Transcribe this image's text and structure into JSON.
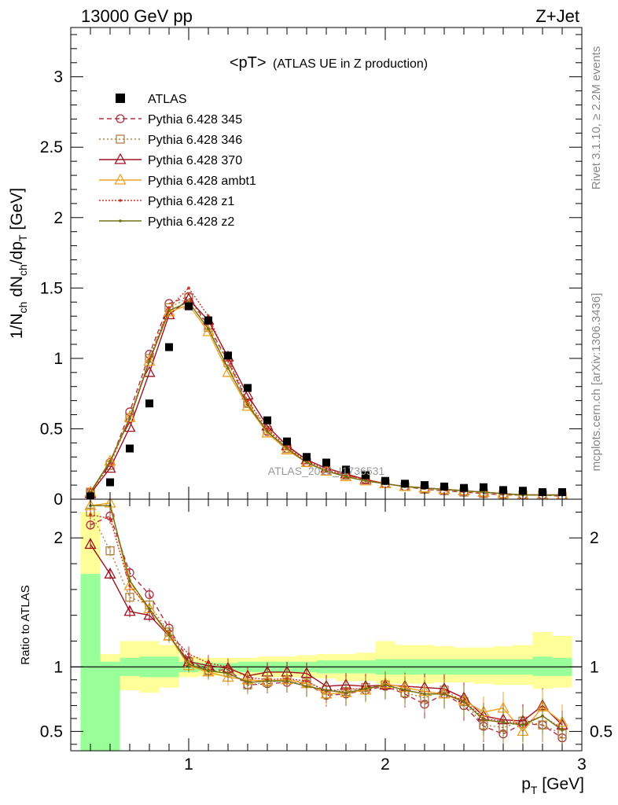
{
  "header": {
    "left": "13000 GeV pp",
    "right": "Z+Jet"
  },
  "side": {
    "rivet": "Rivet 3.1.10, ≥ 2.2M events",
    "mcplots": "mcplots.cern.ch [arXiv:1306.3436]"
  },
  "watermark": "ATLAS_2019_I1736531",
  "colors": {
    "frame": "#000000",
    "band_inner": "#99ff99",
    "band_outer": "#ffff99"
  },
  "chart_data": [
    {
      "type": "line",
      "title_main": "<pT>",
      "title_sub": "(ATLAS UE in Z production)",
      "ylabel_parts": [
        "1/N",
        "ch",
        " dN",
        "ch",
        "/dp",
        "T",
        " [GeV]"
      ],
      "xlim": [
        0.4,
        3.0
      ],
      "ylim": [
        0,
        3.35
      ],
      "yticks": [
        0,
        0.5,
        1,
        1.5,
        2,
        2.5,
        3
      ],
      "ytick_labels": [
        "0",
        "0.5",
        "1",
        "1.5",
        "2",
        "2.5",
        "3"
      ],
      "legend_position": "top-left",
      "x": [
        0.5,
        0.6,
        0.7,
        0.8,
        0.9,
        1.0,
        1.1,
        1.2,
        1.3,
        1.4,
        1.5,
        1.6,
        1.7,
        1.8,
        1.9,
        2.0,
        2.1,
        2.2,
        2.3,
        2.4,
        2.5,
        2.6,
        2.7,
        2.8,
        2.9
      ],
      "data": {
        "name": "ATLAS",
        "color": "#000000",
        "values": [
          0.02,
          0.12,
          0.36,
          0.68,
          1.08,
          1.37,
          1.27,
          1.02,
          0.79,
          0.56,
          0.41,
          0.3,
          0.26,
          0.21,
          0.17,
          0.13,
          0.11,
          0.1,
          0.09,
          0.08,
          0.085,
          0.065,
          0.06,
          0.05,
          0.05
        ]
      },
      "series": [
        {
          "name": "Pythia 6.428 345",
          "color": "#b03040",
          "dash": "6,4",
          "marker": "circle",
          "values": [
            0.05,
            0.26,
            0.62,
            1.03,
            1.39,
            1.44,
            1.23,
            0.98,
            0.68,
            0.48,
            0.36,
            0.26,
            0.2,
            0.17,
            0.14,
            0.11,
            0.09,
            0.07,
            0.06,
            0.05,
            0.04,
            0.03,
            0.03,
            0.03,
            0.02
          ]
        },
        {
          "name": "Pythia 6.428 346",
          "color": "#b08040",
          "dash": "2,3",
          "marker": "square",
          "values": [
            0.05,
            0.24,
            0.58,
            1.0,
            1.36,
            1.43,
            1.22,
            0.97,
            0.68,
            0.49,
            0.36,
            0.26,
            0.2,
            0.17,
            0.14,
            0.11,
            0.09,
            0.07,
            0.06,
            0.05,
            0.04,
            0.03,
            0.03,
            0.03,
            0.02
          ]
        },
        {
          "name": "Pythia 6.428 370",
          "color": "#a01020",
          "dash": "none",
          "marker": "triangle",
          "values": [
            0.04,
            0.22,
            0.51,
            0.9,
            1.31,
            1.42,
            1.27,
            1.01,
            0.74,
            0.52,
            0.38,
            0.28,
            0.22,
            0.18,
            0.14,
            0.11,
            0.09,
            0.08,
            0.07,
            0.06,
            0.05,
            0.04,
            0.03,
            0.03,
            0.03
          ]
        },
        {
          "name": "Pythia 6.428 ambt1",
          "color": "#f0a020",
          "dash": "none",
          "marker": "triangle",
          "values": [
            0.05,
            0.27,
            0.58,
            0.98,
            1.33,
            1.38,
            1.19,
            0.9,
            0.66,
            0.47,
            0.35,
            0.26,
            0.2,
            0.16,
            0.13,
            0.11,
            0.09,
            0.08,
            0.07,
            0.06,
            0.05,
            0.04,
            0.03,
            0.03,
            0.03
          ]
        },
        {
          "name": "Pythia 6.428 z1",
          "color": "#d03020",
          "dash": "2,2",
          "marker": "dot",
          "values": [
            0.05,
            0.26,
            0.58,
            0.99,
            1.36,
            1.5,
            1.3,
            0.99,
            0.7,
            0.5,
            0.37,
            0.27,
            0.21,
            0.17,
            0.14,
            0.11,
            0.09,
            0.08,
            0.07,
            0.06,
            0.05,
            0.04,
            0.03,
            0.03,
            0.03
          ]
        },
        {
          "name": "Pythia 6.428 z2",
          "color": "#707010",
          "dash": "none",
          "marker": "dot",
          "values": [
            0.05,
            0.27,
            0.57,
            0.98,
            1.34,
            1.4,
            1.21,
            0.93,
            0.67,
            0.48,
            0.36,
            0.26,
            0.2,
            0.16,
            0.13,
            0.11,
            0.09,
            0.08,
            0.07,
            0.06,
            0.05,
            0.04,
            0.03,
            0.03,
            0.03
          ]
        }
      ]
    },
    {
      "type": "line",
      "ylabel": "Ratio to ATLAS",
      "xlabel_parts": [
        "p",
        "T",
        " [GeV]"
      ],
      "xlim": [
        0.4,
        3.0
      ],
      "ylim": [
        0.35,
        2.3
      ],
      "xticks": [
        1,
        2,
        3
      ],
      "xtick_labels": [
        "1",
        "2",
        "3"
      ],
      "yticks": [
        0.5,
        1,
        2
      ],
      "ytick_labels": [
        "0.5",
        "1",
        "2"
      ],
      "reference_line": 1,
      "band_x_edges": [
        0.45,
        0.55,
        0.65,
        0.75,
        0.85,
        0.95,
        1.05,
        1.15,
        1.25,
        1.35,
        1.45,
        1.55,
        1.65,
        1.75,
        1.85,
        1.95,
        2.05,
        2.15,
        2.25,
        2.35,
        2.45,
        2.55,
        2.65,
        2.75,
        2.85,
        2.95
      ],
      "band_inner": {
        "low": [
          0.35,
          0.35,
          0.93,
          0.92,
          0.92,
          0.96,
          0.97,
          0.97,
          0.96,
          0.96,
          0.96,
          0.96,
          0.95,
          0.95,
          0.95,
          0.94,
          0.94,
          0.94,
          0.94,
          0.94,
          0.94,
          0.94,
          0.94,
          0.93,
          0.93
        ],
        "high": [
          1.72,
          1.04,
          1.07,
          1.08,
          1.08,
          1.04,
          1.03,
          1.03,
          1.04,
          1.04,
          1.04,
          1.04,
          1.05,
          1.05,
          1.05,
          1.06,
          1.06,
          1.06,
          1.06,
          1.06,
          1.06,
          1.06,
          1.06,
          1.08,
          1.07
        ]
      },
      "band_outer": {
        "low": [
          0.35,
          0.35,
          0.82,
          0.8,
          0.84,
          0.92,
          0.93,
          0.94,
          0.93,
          0.92,
          0.92,
          0.92,
          0.91,
          0.89,
          0.89,
          0.87,
          0.87,
          0.87,
          0.88,
          0.88,
          0.87,
          0.86,
          0.86,
          0.83,
          0.84
        ],
        "high": [
          2.2,
          1.1,
          1.2,
          1.2,
          1.17,
          1.08,
          1.07,
          1.07,
          1.07,
          1.08,
          1.08,
          1.09,
          1.1,
          1.1,
          1.11,
          1.2,
          1.17,
          1.17,
          1.16,
          1.15,
          1.15,
          1.16,
          1.17,
          1.27,
          1.24
        ]
      },
      "series": [
        {
          "name": "Pythia 6.428 345",
          "values": [
            2.1,
            2.17,
            1.73,
            1.56,
            1.3,
            1.05,
            0.97,
            0.98,
            0.86,
            0.87,
            0.88,
            0.87,
            0.78,
            0.79,
            0.82,
            0.85,
            0.79,
            0.71,
            0.79,
            0.7,
            0.54,
            0.48,
            0.56,
            0.55,
            0.45
          ]
        },
        {
          "name": "Pythia 6.428 346",
          "values": [
            2.2,
            1.9,
            1.54,
            1.48,
            1.27,
            1.04,
            0.97,
            0.96,
            0.86,
            0.88,
            0.9,
            0.88,
            0.82,
            0.81,
            0.84,
            0.86,
            0.8,
            0.76,
            0.82,
            0.73,
            0.55,
            0.53,
            0.58,
            0.55,
            0.48
          ]
        },
        {
          "name": "Pythia 6.428 370",
          "values": [
            1.95,
            1.72,
            1.43,
            1.4,
            1.24,
            1.04,
            1.01,
            0.99,
            0.93,
            0.96,
            0.96,
            0.95,
            0.85,
            0.86,
            0.85,
            0.86,
            0.85,
            0.84,
            0.83,
            0.76,
            0.62,
            0.59,
            0.58,
            0.7,
            0.55
          ]
        },
        {
          "name": "Pythia 6.428 ambt1",
          "values": [
            2.25,
            2.27,
            1.63,
            1.45,
            1.24,
            1.01,
            0.96,
            0.92,
            0.9,
            0.89,
            0.9,
            0.87,
            0.79,
            0.8,
            0.82,
            0.87,
            0.84,
            0.81,
            0.79,
            0.74,
            0.65,
            0.68,
            0.5,
            0.69,
            0.57
          ]
        },
        {
          "name": "Pythia 6.428 z1",
          "values": [
            2.18,
            2.15,
            1.63,
            1.45,
            1.26,
            1.1,
            1.03,
            1.0,
            0.92,
            0.9,
            0.91,
            0.89,
            0.81,
            0.83,
            0.83,
            0.86,
            0.82,
            0.79,
            0.79,
            0.74,
            0.6,
            0.58,
            0.56,
            0.62,
            0.52
          ]
        },
        {
          "name": "Pythia 6.428 z2",
          "values": [
            2.25,
            2.25,
            1.67,
            1.45,
            1.25,
            1.02,
            0.97,
            0.95,
            0.88,
            0.89,
            0.89,
            0.85,
            0.82,
            0.8,
            0.83,
            0.86,
            0.82,
            0.79,
            0.79,
            0.73,
            0.59,
            0.57,
            0.55,
            0.62,
            0.51
          ]
        }
      ]
    }
  ]
}
